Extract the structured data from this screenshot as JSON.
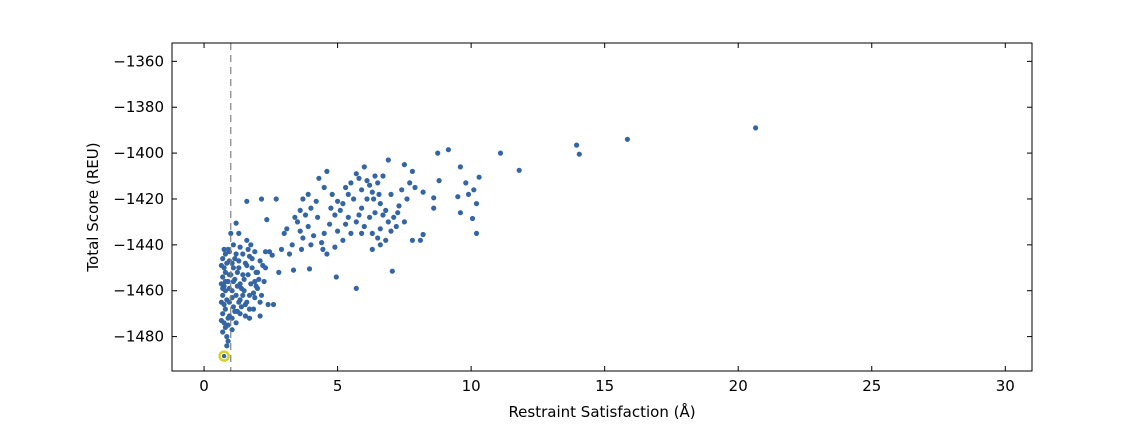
{
  "chart_data": {
    "type": "scatter",
    "xlabel": "Restraint Satisfaction (Å)",
    "ylabel": "Total Score (REU)",
    "xlim": [
      -1.2,
      31
    ],
    "ylim": [
      -1495,
      -1352
    ],
    "xticks": [
      0,
      5,
      10,
      15,
      20,
      25,
      30
    ],
    "yticks": [
      -1480,
      -1460,
      -1440,
      -1420,
      -1400,
      -1380,
      -1360
    ],
    "grid": false,
    "legend": "none",
    "reference_line": {
      "x": 1.0,
      "style": "dashed",
      "color": "#808080"
    },
    "marker_color": "#3465a4",
    "highlight": {
      "x": 0.75,
      "y": -1488.5,
      "ring_color": "#d4d41e"
    },
    "points": [
      [
        20.65,
        -1389
      ],
      [
        15.85,
        -1394
      ],
      [
        13.95,
        -1396.5
      ],
      [
        14.05,
        -1400.5
      ],
      [
        11.1,
        -1400
      ],
      [
        9.6,
        -1406
      ],
      [
        11.8,
        -1407.5
      ],
      [
        9.15,
        -1398.5
      ],
      [
        8.75,
        -1400
      ],
      [
        10.3,
        -1410.5
      ],
      [
        9.8,
        -1413
      ],
      [
        10.1,
        -1416
      ],
      [
        9.9,
        -1418
      ],
      [
        10.2,
        -1422
      ],
      [
        10.05,
        -1428.5
      ],
      [
        9.6,
        -1426
      ],
      [
        10.2,
        -1435
      ],
      [
        9.5,
        -1419
      ],
      [
        8.6,
        -1419.5
      ],
      [
        8.6,
        -1424
      ],
      [
        8.8,
        -1412
      ],
      [
        8.2,
        -1435.5
      ],
      [
        8.1,
        -1438
      ],
      [
        7.05,
        -1451.5
      ],
      [
        5.7,
        -1459
      ],
      [
        4.95,
        -1454
      ],
      [
        3.95,
        -1450.5
      ],
      [
        2.6,
        -1466
      ],
      [
        2.4,
        -1466
      ],
      [
        2.1,
        -1471
      ],
      [
        1.7,
        -1472
      ],
      [
        1.35,
        -1470
      ],
      [
        1.05,
        -1472
      ],
      [
        2.35,
        -1429
      ],
      [
        2.7,
        -1420
      ],
      [
        2.15,
        -1420
      ],
      [
        1.6,
        -1421
      ],
      [
        1.2,
        -1430.5
      ],
      [
        1.3,
        -1435
      ],
      [
        2.55,
        -1444.5
      ],
      [
        2.3,
        -1443
      ],
      [
        2.8,
        -1452
      ],
      [
        3.35,
        -1451
      ],
      [
        3.65,
        -1442
      ],
      [
        4.45,
        -1442
      ],
      [
        4.6,
        -1444
      ],
      [
        4.9,
        -1441
      ],
      [
        5.0,
        -1434
      ],
      [
        5.5,
        -1435
      ],
      [
        5.3,
        -1431
      ],
      [
        5.8,
        -1427
      ],
      [
        6.2,
        -1428
      ],
      [
        6.3,
        -1435
      ],
      [
        6.5,
        -1437
      ],
      [
        6.9,
        -1430
      ],
      [
        7.2,
        -1432
      ],
      [
        7.5,
        -1430
      ],
      [
        7.8,
        -1438
      ],
      [
        6.6,
        -1440
      ],
      [
        6.3,
        -1442
      ],
      [
        5.9,
        -1424
      ],
      [
        6.1,
        -1420
      ],
      [
        6.3,
        -1417
      ],
      [
        6.6,
        -1422
      ],
      [
        6.8,
        -1425
      ],
      [
        7.1,
        -1428
      ],
      [
        7.3,
        -1423
      ],
      [
        7.6,
        -1420
      ],
      [
        7.4,
        -1416
      ],
      [
        7.7,
        -1413
      ],
      [
        7.5,
        -1405
      ],
      [
        7.8,
        -1408
      ],
      [
        7.9,
        -1415
      ],
      [
        8.2,
        -1417
      ],
      [
        6.9,
        -1403
      ],
      [
        6.7,
        -1410
      ],
      [
        6.4,
        -1410
      ],
      [
        6.1,
        -1412
      ],
      [
        5.8,
        -1411
      ],
      [
        5.5,
        -1413
      ],
      [
        5.4,
        -1418
      ],
      [
        5.2,
        -1422
      ],
      [
        5.0,
        -1421
      ],
      [
        4.8,
        -1418
      ],
      [
        4.5,
        -1415
      ],
      [
        4.3,
        -1411
      ],
      [
        4.6,
        -1408
      ],
      [
        4.2,
        -1421
      ],
      [
        4.0,
        -1424
      ],
      [
        3.8,
        -1427
      ],
      [
        3.6,
        -1425
      ],
      [
        3.4,
        -1428
      ],
      [
        3.6,
        -1434
      ],
      [
        3.9,
        -1432
      ],
      [
        4.1,
        -1436
      ],
      [
        4.4,
        -1439
      ],
      [
        4.0,
        -1440
      ],
      [
        3.7,
        -1437
      ],
      [
        3.3,
        -1440
      ],
      [
        3.0,
        -1435
      ],
      [
        2.9,
        -1442
      ],
      [
        3.2,
        -1444
      ],
      [
        3.1,
        -1433
      ],
      [
        3.5,
        -1430
      ],
      [
        4.9,
        -1427
      ],
      [
        5.1,
        -1425
      ],
      [
        5.4,
        -1428
      ],
      [
        5.7,
        -1430
      ],
      [
        6.0,
        -1432
      ],
      [
        6.4,
        -1426
      ],
      [
        6.7,
        -1427
      ],
      [
        7.0,
        -1418
      ],
      [
        6.2,
        -1414
      ],
      [
        5.9,
        -1416
      ],
      [
        6.5,
        -1413
      ],
      [
        6.0,
        -1406
      ],
      [
        5.7,
        -1409
      ],
      [
        4.7,
        -1431
      ],
      [
        4.5,
        -1435
      ],
      [
        3.9,
        -1418
      ],
      [
        3.7,
        -1420
      ],
      [
        5.2,
        -1438
      ],
      [
        6.8,
        -1438
      ],
      [
        7.0,
        -1434
      ],
      [
        6.6,
        -1433
      ],
      [
        5.6,
        -1420
      ],
      [
        6.35,
        -1420
      ],
      [
        6.55,
        -1418
      ],
      [
        4.25,
        -1428
      ],
      [
        4.75,
        -1424
      ],
      [
        5.3,
        -1415
      ],
      [
        7.25,
        -1426
      ],
      [
        5.9,
        -1435
      ],
      [
        0.75,
        -1442
      ],
      [
        0.8,
        -1444
      ],
      [
        0.7,
        -1446
      ],
      [
        0.85,
        -1448
      ],
      [
        0.75,
        -1450
      ],
      [
        0.8,
        -1452
      ],
      [
        0.7,
        -1454
      ],
      [
        0.9,
        -1456
      ],
      [
        0.75,
        -1458
      ],
      [
        0.8,
        -1460
      ],
      [
        0.7,
        -1462
      ],
      [
        0.85,
        -1464
      ],
      [
        0.75,
        -1466
      ],
      [
        0.8,
        -1468
      ],
      [
        0.7,
        -1470
      ],
      [
        0.9,
        -1472
      ],
      [
        0.75,
        -1474
      ],
      [
        0.8,
        -1476
      ],
      [
        0.7,
        -1478
      ],
      [
        0.85,
        -1480
      ],
      [
        0.95,
        -1447
      ],
      [
        0.95,
        -1453
      ],
      [
        0.95,
        -1459
      ],
      [
        0.95,
        -1465
      ],
      [
        0.95,
        -1471
      ],
      [
        0.9,
        -1442
      ],
      [
        0.65,
        -1449
      ],
      [
        0.65,
        -1457
      ],
      [
        0.65,
        -1465
      ],
      [
        0.65,
        -1473
      ],
      [
        0.85,
        -1484
      ],
      [
        0.9,
        -1482
      ],
      [
        1.0,
        -1435
      ],
      [
        1.1,
        -1440
      ],
      [
        1.2,
        -1444
      ],
      [
        1.3,
        -1447
      ],
      [
        1.1,
        -1450
      ],
      [
        1.25,
        -1452
      ],
      [
        1.15,
        -1455
      ],
      [
        1.35,
        -1457
      ],
      [
        1.05,
        -1460
      ],
      [
        1.2,
        -1462
      ],
      [
        1.4,
        -1459
      ],
      [
        1.3,
        -1465
      ],
      [
        1.1,
        -1467
      ],
      [
        1.25,
        -1469
      ],
      [
        1.45,
        -1462
      ],
      [
        1.5,
        -1455
      ],
      [
        1.55,
        -1448
      ],
      [
        1.45,
        -1444
      ],
      [
        1.35,
        -1441
      ],
      [
        1.6,
        -1438
      ],
      [
        1.7,
        -1445
      ],
      [
        1.8,
        -1450
      ],
      [
        1.65,
        -1453
      ],
      [
        1.75,
        -1457
      ],
      [
        1.85,
        -1461
      ],
      [
        1.6,
        -1465
      ],
      [
        1.7,
        -1468
      ],
      [
        1.9,
        -1463
      ],
      [
        2.0,
        -1459
      ],
      [
        2.05,
        -1455
      ],
      [
        1.95,
        -1452
      ],
      [
        2.1,
        -1447
      ],
      [
        1.9,
        -1443
      ],
      [
        2.2,
        -1449
      ],
      [
        2.25,
        -1456
      ],
      [
        2.15,
        -1462
      ],
      [
        1.85,
        -1468
      ],
      [
        1.55,
        -1471
      ],
      [
        1.2,
        -1474
      ],
      [
        1.05,
        -1477
      ],
      [
        1.4,
        -1467
      ],
      [
        1.75,
        -1440
      ],
      [
        2.3,
        -1450
      ],
      [
        2.45,
        -1443
      ],
      [
        1.15,
        -1446
      ],
      [
        1.0,
        -1453
      ],
      [
        1.05,
        -1463
      ],
      [
        1.3,
        -1450
      ],
      [
        1.5,
        -1460
      ],
      [
        1.65,
        -1442
      ],
      [
        0.9,
        -1475
      ],
      [
        1.1,
        -1456
      ],
      [
        1.45,
        -1453
      ],
      [
        2.0,
        -1452
      ],
      [
        1.8,
        -1446
      ],
      [
        1.95,
        -1458
      ],
      [
        1.6,
        -1449
      ],
      [
        1.35,
        -1464
      ],
      [
        1.25,
        -1458
      ],
      [
        1.55,
        -1466
      ],
      [
        1.05,
        -1448
      ],
      [
        0.95,
        -1443
      ],
      [
        1.15,
        -1469
      ],
      [
        1.7,
        -1462
      ],
      [
        2.1,
        -1465
      ],
      [
        1.9,
        -1456
      ],
      [
        0.8,
        -1456
      ],
      [
        0.7,
        -1459
      ]
    ]
  }
}
